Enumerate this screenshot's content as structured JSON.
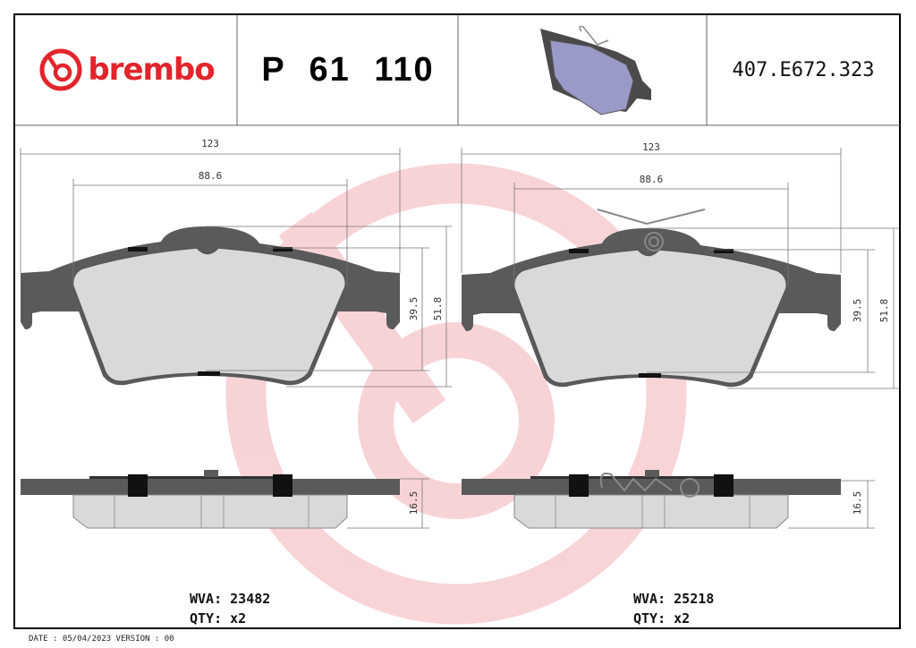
{
  "header": {
    "brand": "brembo",
    "part_number": "P 61 110",
    "reference": "407.E672.323"
  },
  "drawings": {
    "left": {
      "width": "123",
      "width_inner": "88.6",
      "height_inner": "39.5",
      "height": "51.8",
      "thickness": "16.5",
      "wva_label": "WVA: 23482",
      "qty_label": "QTY: x2"
    },
    "right": {
      "width": "123",
      "width_inner": "88.6",
      "height_inner": "39.5",
      "height": "51.8",
      "thickness": "16.5",
      "wva_label": "WVA: 25218",
      "qty_label": "QTY: x2"
    }
  },
  "footer": {
    "date_version": "DATE : 05/04/2023 VERSION : 00"
  },
  "colors": {
    "brand_red": "#e2252b",
    "backing_plate": "#5a5a5a",
    "friction": "#d9d9d9",
    "watermark": "#f5c5c8"
  }
}
